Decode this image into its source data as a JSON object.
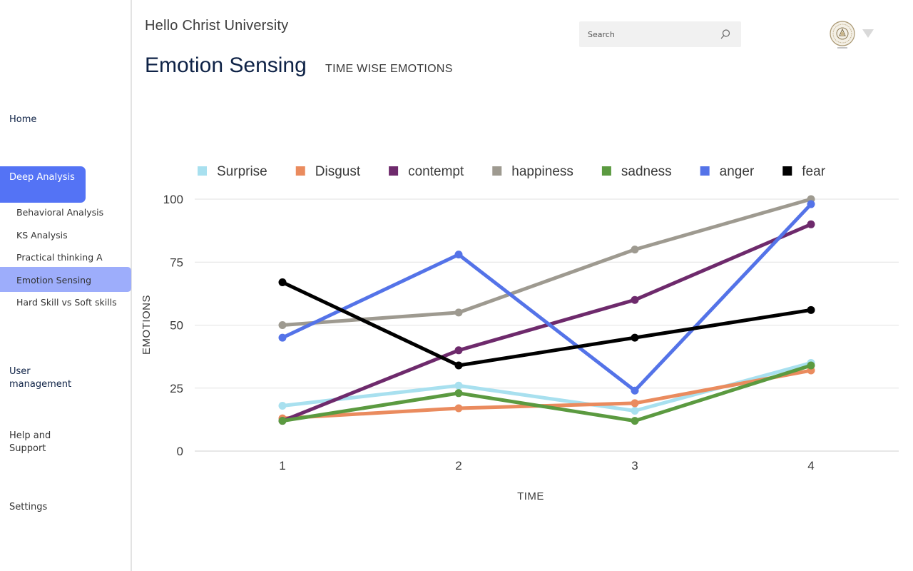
{
  "header": {
    "greeting": "Hello Christ University",
    "title": "Emotion Sensing",
    "subtitle": "TIME WISE EMOTIONS",
    "search_placeholder": "Search"
  },
  "sidebar": {
    "home": "Home",
    "deep_analysis": "Deep Analysis",
    "sub_items": [
      "Behavioral Analysis",
      "KS Analysis",
      "Practical thinking A",
      "Emotion Sensing",
      "Hard Skill vs Soft skills"
    ],
    "user_management": "User management",
    "help": "Help and Support",
    "settings": "Settings"
  },
  "colors": {
    "accent": "#5473f5",
    "accent_light": "#9dadfb",
    "title": "#0e2246"
  },
  "chart_data": {
    "type": "line",
    "xlabel": "TIME",
    "ylabel": "EMOTIONS",
    "x": [
      1,
      2,
      3,
      4
    ],
    "ylim": [
      0,
      100
    ],
    "yticks": [
      0,
      25,
      50,
      75,
      100
    ],
    "grid": true,
    "legend": "top",
    "series": [
      {
        "name": "Surprise",
        "color": "#a8e0ef",
        "values": [
          18,
          26,
          16,
          35
        ]
      },
      {
        "name": "Disgust",
        "color": "#ea8b5e",
        "values": [
          13,
          17,
          19,
          32
        ]
      },
      {
        "name": "contempt",
        "color": "#6e2a6c",
        "values": [
          12,
          40,
          60,
          90
        ]
      },
      {
        "name": "happiness",
        "color": "#9e9a90",
        "values": [
          50,
          55,
          80,
          100
        ]
      },
      {
        "name": "sadness",
        "color": "#5b9a40",
        "values": [
          12,
          23,
          12,
          34
        ]
      },
      {
        "name": "anger",
        "color": "#5473e8",
        "values": [
          45,
          78,
          24,
          98
        ]
      },
      {
        "name": "fear",
        "color": "#000000",
        "values": [
          67,
          34,
          45,
          56
        ]
      }
    ]
  }
}
